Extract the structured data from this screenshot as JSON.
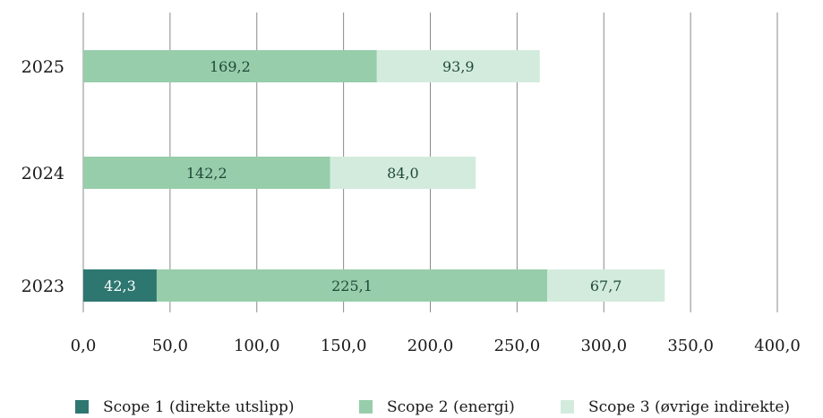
{
  "chart_data": {
    "type": "bar",
    "orientation": "horizontal",
    "stacked": true,
    "categories": [
      "2025",
      "2024",
      "2023"
    ],
    "series": [
      {
        "name": "Scope 1 (direkte utslipp)",
        "values": [
          0,
          0,
          42.3
        ],
        "labels": [
          "",
          "",
          "42,3"
        ],
        "color": "#2e7670",
        "label_color": "#ffffff"
      },
      {
        "name": "Scope 2 (energi)",
        "values": [
          169.2,
          142.2,
          225.1
        ],
        "labels": [
          "169,2",
          "142,2",
          "225,1"
        ],
        "color": "#97cdaa",
        "label_color": "#1f4a3a"
      },
      {
        "name": "Scope 3 (øvrige indirekte)",
        "values": [
          93.9,
          84.0,
          67.7
        ],
        "labels": [
          "93,9",
          "84,0",
          "67,7"
        ],
        "color": "#d3ebdd",
        "label_color": "#1f4a3a"
      }
    ],
    "xlim": [
      0,
      400
    ],
    "xticks": [
      0,
      50,
      100,
      150,
      200,
      250,
      300,
      350,
      400
    ],
    "xtick_labels": [
      "0,0",
      "50,0",
      "100,0",
      "150,0",
      "200,0",
      "250,0",
      "300,0",
      "350,0",
      "400,0"
    ],
    "grid": "vertical",
    "legend": "bottom",
    "title": "",
    "xlabel": "",
    "ylabel": "",
    "gridline_color": "#8a8a8a"
  }
}
